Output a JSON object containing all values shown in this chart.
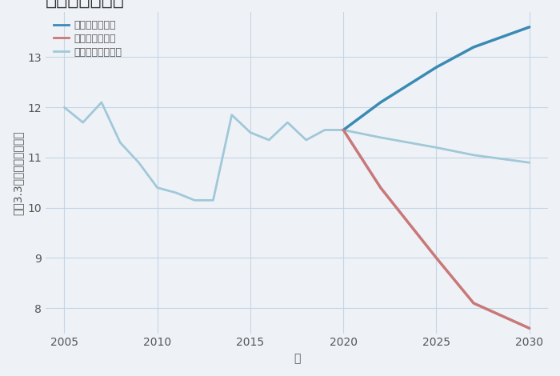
{
  "xlabel": "年",
  "ylabel": "坪（3.3㎡）単価（万円）",
  "background_color": "#eef2f6",
  "plot_bg_color": "#eef2f6",
  "normal_scenario": {
    "x": [
      2005,
      2006,
      2007,
      2008,
      2009,
      2010,
      2011,
      2012,
      2013,
      2014,
      2015,
      2016,
      2017,
      2018,
      2019,
      2020
    ],
    "y": [
      12.0,
      11.7,
      12.1,
      11.3,
      10.9,
      10.4,
      10.3,
      10.15,
      10.15,
      11.85,
      11.5,
      11.35,
      11.7,
      11.35,
      11.55,
      11.55
    ],
    "color": "#a0c8d8",
    "linewidth": 2.0,
    "label": "ノーマルシナリオ"
  },
  "normal_future": {
    "x": [
      2020,
      2022,
      2025,
      2027,
      2030
    ],
    "y": [
      11.55,
      11.4,
      11.2,
      11.05,
      10.9
    ],
    "color": "#a0c8d8",
    "linewidth": 2.0
  },
  "good_scenario": {
    "x": [
      2020,
      2022,
      2025,
      2027,
      2030
    ],
    "y": [
      11.55,
      12.1,
      12.8,
      13.2,
      13.6
    ],
    "color": "#3a8ab5",
    "linewidth": 2.5,
    "label": "グッドシナリオ"
  },
  "bad_scenario": {
    "x": [
      2020,
      2022,
      2025,
      2027,
      2030
    ],
    "y": [
      11.55,
      10.4,
      9.0,
      8.1,
      7.6
    ],
    "color": "#c87878",
    "linewidth": 2.5,
    "label": "バッドシナリオ"
  },
  "ylim": [
    7.5,
    13.9
  ],
  "xlim": [
    2004.0,
    2031.0
  ],
  "yticks": [
    8,
    9,
    10,
    11,
    12,
    13
  ],
  "xticks": [
    2005,
    2010,
    2015,
    2020,
    2025,
    2030
  ],
  "grid_color": "#c5d5e5",
  "title_fontsize": 17,
  "tick_fontsize": 10,
  "label_fontsize": 10
}
